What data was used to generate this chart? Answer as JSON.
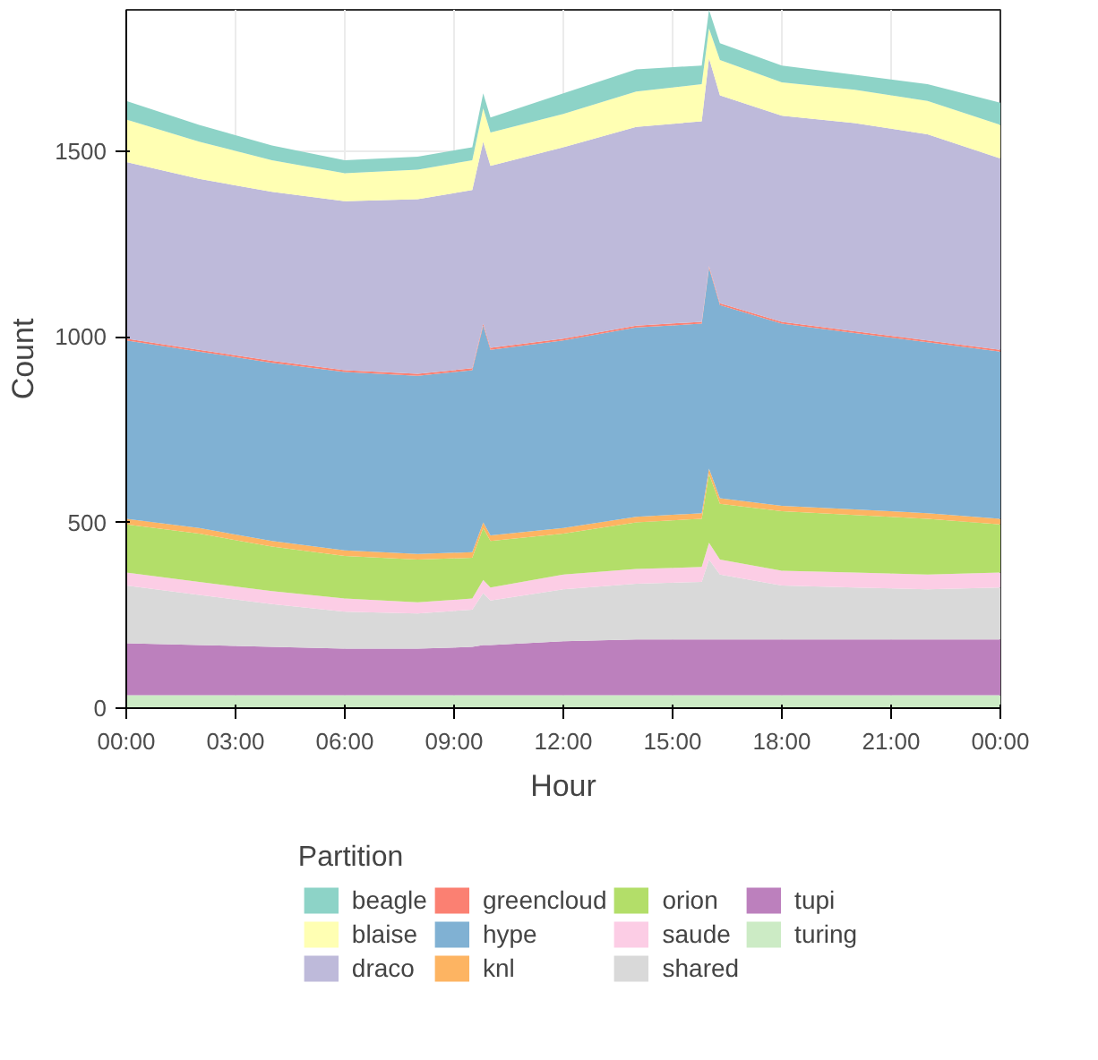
{
  "chart_data": {
    "type": "area",
    "stacked": true,
    "xlabel": "Hour",
    "ylabel": "Count",
    "legend_title": "Partition",
    "legend": "bottom",
    "grid": true,
    "x": [
      0,
      2,
      4,
      6,
      8,
      9.5,
      9.8,
      10,
      12,
      14,
      15.8,
      16,
      16.3,
      18,
      20,
      22,
      24
    ],
    "xlim": [
      0,
      24
    ],
    "ylim": [
      0,
      1880
    ],
    "xticks": [
      {
        "value": 0,
        "label": "00:00"
      },
      {
        "value": 3,
        "label": "03:00"
      },
      {
        "value": 6,
        "label": "06:00"
      },
      {
        "value": 9,
        "label": "09:00"
      },
      {
        "value": 12,
        "label": "12:00"
      },
      {
        "value": 15,
        "label": "15:00"
      },
      {
        "value": 18,
        "label": "18:00"
      },
      {
        "value": 21,
        "label": "21:00"
      },
      {
        "value": 24,
        "label": "00:00"
      }
    ],
    "yticks": [
      0,
      500,
      1000,
      1500
    ],
    "series": [
      {
        "name": "turing",
        "color": "#ccebc5",
        "values": [
          35,
          35,
          35,
          35,
          35,
          35,
          35,
          35,
          35,
          35,
          35,
          35,
          35,
          35,
          35,
          35,
          35
        ]
      },
      {
        "name": "tupi",
        "color": "#bc80bd",
        "values": [
          140,
          135,
          130,
          125,
          125,
          130,
          135,
          135,
          145,
          150,
          150,
          150,
          150,
          150,
          150,
          150,
          150
        ]
      },
      {
        "name": "shared",
        "color": "#d9d9d9",
        "values": [
          155,
          135,
          115,
          100,
          95,
          100,
          140,
          120,
          140,
          150,
          155,
          215,
          175,
          145,
          140,
          135,
          140
        ]
      },
      {
        "name": "saude",
        "color": "#fccde5",
        "values": [
          35,
          35,
          35,
          35,
          30,
          30,
          35,
          35,
          40,
          40,
          40,
          45,
          40,
          40,
          40,
          40,
          40
        ]
      },
      {
        "name": "orion",
        "color": "#b3de69",
        "values": [
          130,
          130,
          120,
          115,
          115,
          110,
          140,
          125,
          110,
          125,
          130,
          185,
          150,
          160,
          155,
          150,
          130
        ]
      },
      {
        "name": "knl",
        "color": "#fdb462",
        "values": [
          15,
          15,
          15,
          15,
          15,
          15,
          15,
          15,
          15,
          15,
          15,
          15,
          15,
          15,
          15,
          15,
          15
        ]
      },
      {
        "name": "hype",
        "color": "#80b1d3",
        "values": [
          480,
          475,
          480,
          480,
          480,
          490,
          530,
          500,
          505,
          510,
          510,
          540,
          520,
          490,
          475,
          460,
          450
        ]
      },
      {
        "name": "greencloud",
        "color": "#fb8072",
        "values": [
          5,
          5,
          5,
          5,
          5,
          5,
          5,
          5,
          5,
          5,
          5,
          5,
          5,
          5,
          5,
          5,
          5
        ]
      },
      {
        "name": "draco",
        "color": "#bebada",
        "values": [
          475,
          460,
          455,
          455,
          470,
          480,
          490,
          490,
          515,
          535,
          540,
          560,
          560,
          555,
          560,
          555,
          515
        ]
      },
      {
        "name": "blaise",
        "color": "#ffffb3",
        "values": [
          115,
          100,
          85,
          75,
          80,
          80,
          90,
          90,
          90,
          95,
          100,
          80,
          95,
          90,
          90,
          90,
          90
        ]
      },
      {
        "name": "beagle",
        "color": "#8dd3c7",
        "values": [
          50,
          45,
          40,
          35,
          35,
          35,
          40,
          40,
          55,
          60,
          50,
          50,
          45,
          45,
          40,
          45,
          60
        ]
      }
    ]
  }
}
